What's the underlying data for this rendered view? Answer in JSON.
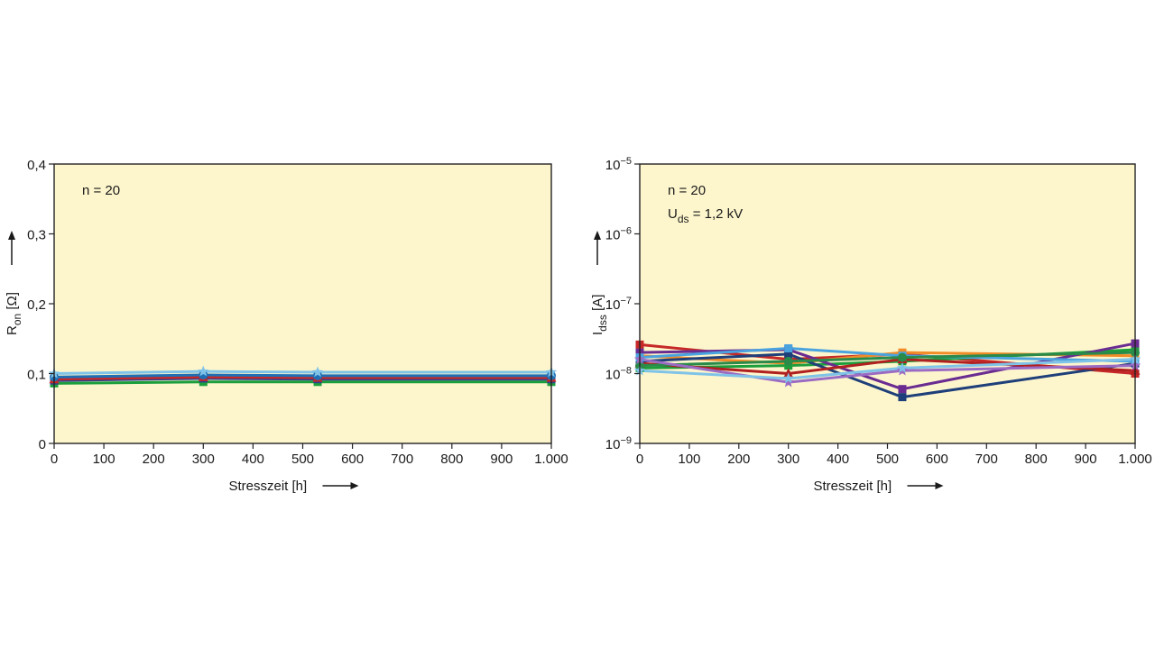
{
  "chart_data": [
    {
      "type": "line",
      "ylabel": {
        "main": "R",
        "sub": "on",
        "unit": " [Ω]"
      },
      "xlabel": "Stresszeit [h]",
      "xlim": [
        0,
        1000
      ],
      "ylim": [
        0,
        0.4
      ],
      "x_ticks": [
        0,
        100,
        200,
        300,
        400,
        500,
        600,
        700,
        800,
        900,
        1000
      ],
      "x_tick_labels": [
        "0",
        "100",
        "200",
        "300",
        "400",
        "500",
        "600",
        "700",
        "800",
        "900",
        "1.000"
      ],
      "y_ticks": [
        0,
        0.1,
        0.2,
        0.3,
        0.4
      ],
      "y_tick_labels": [
        "0",
        "0,1",
        "0,2",
        "0,3",
        "0,4"
      ],
      "annotations": [
        "n = 20"
      ],
      "background": "#fdf6cd",
      "x": [
        0,
        300,
        530,
        1000
      ],
      "series": [
        {
          "color": "#1b9e3c",
          "marker": "square",
          "values": [
            0.086,
            0.088,
            0.088,
            0.088
          ]
        },
        {
          "color": "#2d3f8f",
          "marker": "square",
          "values": [
            0.09,
            0.093,
            0.092,
            0.092
          ]
        },
        {
          "color": "#c62828",
          "marker": "triangle",
          "values": [
            0.092,
            0.095,
            0.094,
            0.094
          ]
        },
        {
          "color": "#1f6fb5",
          "marker": "circle",
          "values": [
            0.095,
            0.098,
            0.097,
            0.097
          ]
        },
        {
          "color": "#7fc3e8",
          "marker": "star",
          "values": [
            0.1,
            0.103,
            0.102,
            0.102
          ]
        }
      ]
    },
    {
      "type": "line",
      "ylabel": {
        "main": "I",
        "sub": "dss",
        "unit": " [A]"
      },
      "xlabel": "Stresszeit [h]",
      "yscale": "log",
      "xlim": [
        0,
        1000
      ],
      "ylim": [
        1e-09,
        1e-05
      ],
      "x_ticks": [
        0,
        100,
        200,
        300,
        400,
        500,
        600,
        700,
        800,
        900,
        1000
      ],
      "x_tick_labels": [
        "0",
        "100",
        "200",
        "300",
        "400",
        "500",
        "600",
        "700",
        "800",
        "900",
        "1.000"
      ],
      "y_ticks": [
        {
          "value": 1e-09,
          "base": "10",
          "exp": "−9"
        },
        {
          "value": 1e-08,
          "base": "10",
          "exp": "−8"
        },
        {
          "value": 1e-07,
          "base": "10",
          "exp": "−7"
        },
        {
          "value": 1e-06,
          "base": "10",
          "exp": "−6"
        },
        {
          "value": 1e-05,
          "base": "10",
          "exp": "−5"
        }
      ],
      "annotations": [
        "n = 20",
        {
          "main": "U",
          "sub": "ds",
          "rest": " = 1,2 kV"
        }
      ],
      "background": "#fdf6cd",
      "x": [
        0,
        300,
        530,
        1000
      ],
      "series": [
        {
          "color": "#c62828",
          "marker": "square",
          "values": [
            2.6e-08,
            1.6e-08,
            1.9e-08,
            1e-08
          ]
        },
        {
          "color": "#f28c28",
          "marker": "square",
          "values": [
            1.8e-08,
            1.4e-08,
            2e-08,
            1.8e-08
          ]
        },
        {
          "color": "#1b9e3c",
          "marker": "square",
          "values": [
            1.2e-08,
            1.3e-08,
            1.5e-08,
            2.2e-08
          ]
        },
        {
          "color": "#6a2c91",
          "marker": "square",
          "values": [
            2e-08,
            2.2e-08,
            6e-09,
            2.7e-08
          ]
        },
        {
          "color": "#1f3f7a",
          "marker": "square",
          "values": [
            1.5e-08,
            1.9e-08,
            4.6e-09,
            1.4e-08
          ]
        },
        {
          "color": "#4aa3df",
          "marker": "square",
          "values": [
            1.7e-08,
            2.3e-08,
            1.8e-08,
            1.5e-08
          ]
        },
        {
          "color": "#b02020",
          "marker": "triangle",
          "values": [
            1.4e-08,
            1e-08,
            1.6e-08,
            1.1e-08
          ]
        },
        {
          "color": "#2a8a4a",
          "marker": "circle",
          "values": [
            1.3e-08,
            1.5e-08,
            1.7e-08,
            2e-08
          ]
        },
        {
          "color": "#9b6bc4",
          "marker": "star",
          "values": [
            1.6e-08,
            7.5e-09,
            1.1e-08,
            1.3e-08
          ]
        },
        {
          "color": "#7fc3e8",
          "marker": "star",
          "values": [
            1.1e-08,
            8.5e-09,
            1.2e-08,
            1.6e-08
          ]
        }
      ]
    }
  ]
}
